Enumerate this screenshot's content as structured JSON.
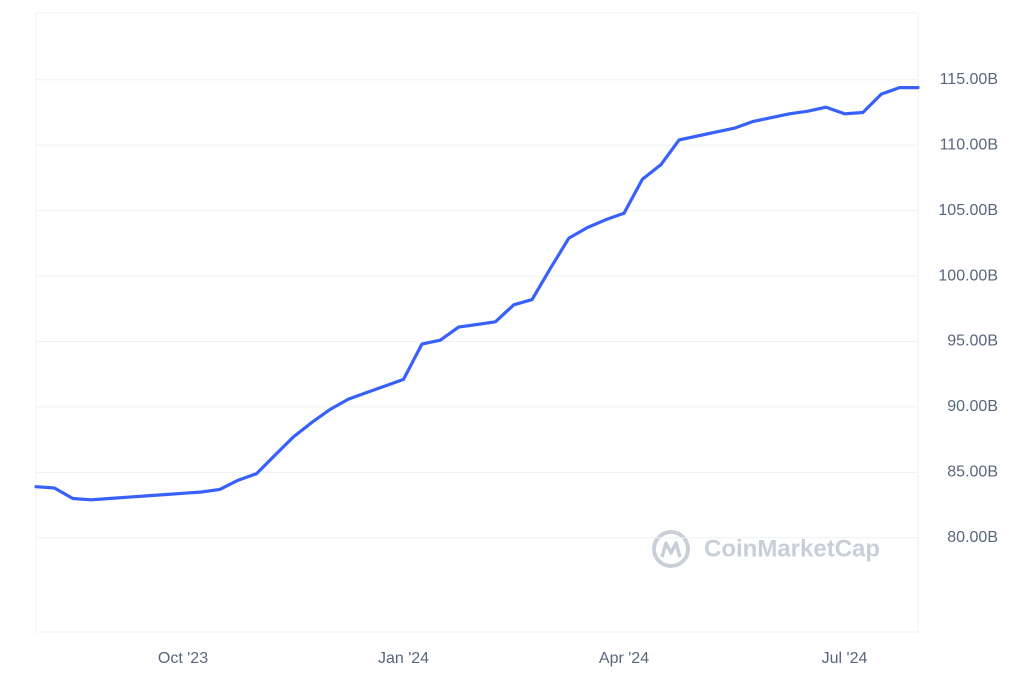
{
  "chart_data": {
    "type": "line",
    "watermark": "CoinMarketCap",
    "categories": [
      null,
      null,
      null,
      null,
      null,
      null,
      null,
      null,
      "Oct '23",
      null,
      null,
      null,
      null,
      null,
      null,
      null,
      null,
      null,
      null,
      null,
      "Jan '24",
      null,
      null,
      null,
      null,
      null,
      null,
      null,
      null,
      null,
      null,
      null,
      "Apr '24",
      null,
      null,
      null,
      null,
      null,
      null,
      null,
      null,
      null,
      null,
      null,
      "Jul '24",
      null,
      null,
      null,
      null
    ],
    "series": [
      {
        "color": "#3861fb",
        "values": [
          83.9,
          83.8,
          83.0,
          82.9,
          83.0,
          83.1,
          83.2,
          83.3,
          83.4,
          83.5,
          83.7,
          84.4,
          84.9,
          86.3,
          87.7,
          88.8,
          89.8,
          90.6,
          91.1,
          91.6,
          92.1,
          94.8,
          95.1,
          96.1,
          96.3,
          96.5,
          97.8,
          98.2,
          100.6,
          102.9,
          103.7,
          104.3,
          104.8,
          107.4,
          108.5,
          110.4,
          110.7,
          111.0,
          111.3,
          111.8,
          112.1,
          112.4,
          112.6,
          112.9,
          112.4,
          112.5,
          113.9,
          114.4,
          114.4
        ]
      }
    ],
    "ylim": [
      72.8,
      120.1
    ],
    "yticks": [
      {
        "value": 80,
        "label": "80.00B"
      },
      {
        "value": 85,
        "label": "85.00B"
      },
      {
        "value": 90,
        "label": "90.00B"
      },
      {
        "value": 95,
        "label": "95.00B"
      },
      {
        "value": 100,
        "label": "100.00B"
      },
      {
        "value": 105,
        "label": "105.00B"
      },
      {
        "value": 110,
        "label": "110.00B"
      },
      {
        "value": 115,
        "label": "115.00B"
      }
    ],
    "grid": true
  }
}
